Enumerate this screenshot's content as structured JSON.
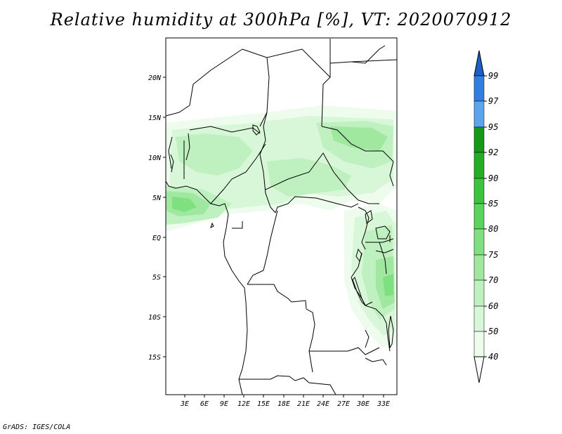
{
  "title": "Relative humidity at 300hPa [%], VT: 2020070912",
  "credit": "GrADS: IGES/COLA",
  "map": {
    "lat_ticks": [
      "20N",
      "15N",
      "10N",
      "5N",
      "EQ",
      "5S",
      "10S",
      "15S"
    ],
    "lon_ticks": [
      "3E",
      "6E",
      "9E",
      "12E",
      "15E",
      "18E",
      "21E",
      "24E",
      "27E",
      "30E",
      "33E"
    ]
  },
  "colorbar": {
    "levels": [
      "99",
      "97",
      "95",
      "92",
      "90",
      "85",
      "80",
      "75",
      "70",
      "60",
      "50",
      "40"
    ],
    "colors": {
      "above_99": "#1b5fc8",
      "97_99": "#2f7fe0",
      "95_97": "#5aa5ee",
      "92_95": "#169a16",
      "90_92": "#25ae25",
      "85_90": "#3cc43c",
      "80_85": "#5ad45a",
      "75_80": "#7ee07e",
      "70_75": "#a0e8a0",
      "60_70": "#bff0bf",
      "50_60": "#d8f7d8",
      "40_50": "#edfced"
    }
  }
}
